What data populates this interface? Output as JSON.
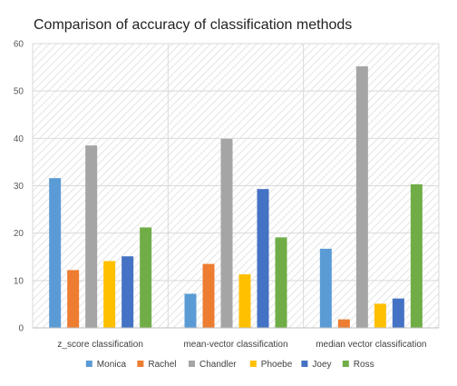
{
  "chart_data": {
    "type": "bar",
    "title": "Comparison of accuracy of classification methods",
    "xlabel": "",
    "ylabel": "",
    "ylim": [
      0,
      60
    ],
    "yticks": [
      0,
      10,
      20,
      30,
      40,
      50,
      60
    ],
    "grid": true,
    "legend_position": "bottom",
    "categories": [
      "z_score classification",
      "mean-vector classification",
      "median vector classification"
    ],
    "series": [
      {
        "name": "Monica",
        "color": "#5B9BD5",
        "values": [
          31.6,
          7.2,
          16.7
        ]
      },
      {
        "name": "Rachel",
        "color": "#ED7D31",
        "values": [
          12.2,
          13.5,
          1.8
        ]
      },
      {
        "name": "Chandler",
        "color": "#A5A5A5",
        "values": [
          38.5,
          39.9,
          55.2
        ]
      },
      {
        "name": "Phoebe",
        "color": "#FFC000",
        "values": [
          14.1,
          11.3,
          5.1
        ]
      },
      {
        "name": "Joey",
        "color": "#4472C4",
        "values": [
          15.1,
          29.3,
          6.2
        ]
      },
      {
        "name": "Ross",
        "color": "#70AD47",
        "values": [
          21.2,
          19.1,
          30.3
        ]
      }
    ]
  }
}
